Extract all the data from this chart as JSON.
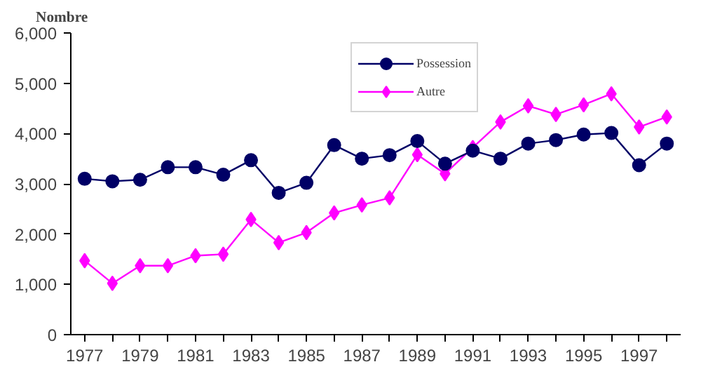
{
  "chart_data": {
    "type": "line",
    "ylabel": "Nombre",
    "categories": [
      "1977",
      null,
      "1979",
      null,
      "1981",
      null,
      "1983",
      null,
      "1985",
      null,
      "1987",
      null,
      "1989",
      null,
      "1991",
      null,
      "1993",
      null,
      "1995",
      null,
      "1997",
      null
    ],
    "series": [
      {
        "name": "Possession",
        "color": "#000066",
        "marker": "circle",
        "values": [
          3100,
          3050,
          3080,
          3330,
          3330,
          3180,
          3470,
          2820,
          3020,
          3770,
          3500,
          3570,
          3850,
          3400,
          3660,
          3500,
          3800,
          3870,
          3980,
          4010,
          3370,
          3800
        ]
      },
      {
        "name": "Autre",
        "color": "#ff00ff",
        "marker": "diamond",
        "values": [
          1470,
          1020,
          1370,
          1370,
          1570,
          1600,
          2290,
          1830,
          2030,
          2420,
          2580,
          2720,
          3580,
          3200,
          3720,
          4230,
          4550,
          4380,
          4570,
          4790,
          4130,
          4330
        ]
      }
    ],
    "ylim": [
      0,
      6000
    ],
    "yticks": [
      {
        "value": 0,
        "label": "0"
      },
      {
        "value": 1000,
        "label": "1,000"
      },
      {
        "value": 2000,
        "label": "2,000"
      },
      {
        "value": 3000,
        "label": "3,000"
      },
      {
        "value": 4000,
        "label": "4,000"
      },
      {
        "value": 5000,
        "label": "5,000"
      },
      {
        "value": 6000,
        "label": "6,000"
      }
    ],
    "grid": false,
    "legend": "top",
    "line_style": "solid"
  }
}
